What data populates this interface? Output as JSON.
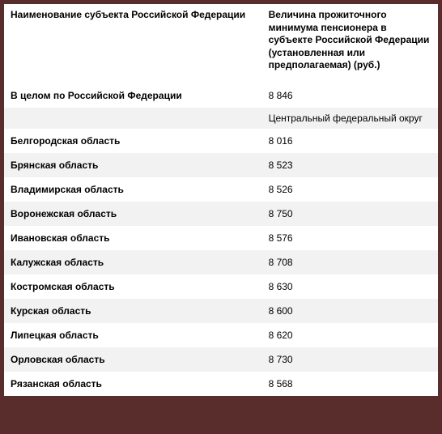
{
  "header": {
    "col1": "Наименование субъекта Российской Федерации",
    "col2": "Величина прожиточного минимума пенсионера в субъекте Российской Федерации (установленная или предполагаемая) (руб.)"
  },
  "total": {
    "label": "В целом по Российской Федерации",
    "value": "8 846"
  },
  "section": "Центральный федеральный округ",
  "rows": [
    {
      "label": "Белгородская область",
      "value": "8 016"
    },
    {
      "label": "Брянская область",
      "value": "8 523"
    },
    {
      "label": "Владимирская область",
      "value": "8 526"
    },
    {
      "label": "Воронежская область",
      "value": "8 750"
    },
    {
      "label": "Ивановская область",
      "value": "8 576"
    },
    {
      "label": "Калужская область",
      "value": "8 708"
    },
    {
      "label": "Костромская область",
      "value": "8 630"
    },
    {
      "label": "Курская область",
      "value": "8 600"
    },
    {
      "label": "Липецкая область",
      "value": "8 620"
    },
    {
      "label": "Орловская область",
      "value": "8 730"
    },
    {
      "label": "Рязанская область",
      "value": "8 568"
    }
  ]
}
